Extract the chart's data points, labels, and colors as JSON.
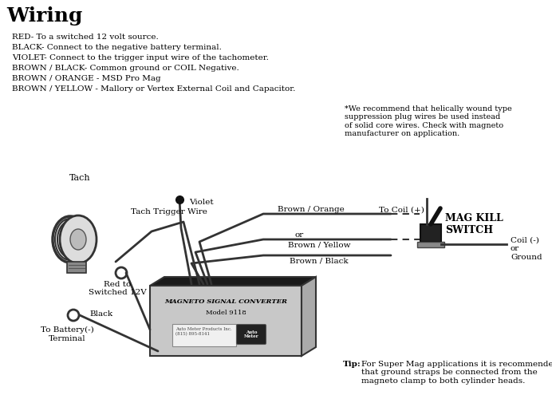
{
  "title": "Wiring",
  "bg_color": "#ffffff",
  "text_color": "#000000",
  "legend_lines": [
    "RED- To a switched 12 volt source.",
    "BLACK- Connect to the negative battery terminal.",
    "VIOLET- Connect to the trigger input wire of the tachometer.",
    "BROWN / BLACK- Common ground or COIL Negative.",
    "BROWN / ORANGE - MSD Pro Mag",
    "BROWN / YELLOW - Mallory or Vertex External Coil and Capacitor."
  ],
  "note_text": "*We recommend that helically wound type\nsuppression plug wires be used instead\nof solid core wires. Check with magneto\nmanufacturer on application.",
  "tip_text": "For Super Mag applications it is recommended\nthat ground straps be connected from the\nmagneto clamp to both cylinder heads.",
  "wire_labels": {
    "brown_orange": "Brown / Orange",
    "or": "or",
    "brown_yellow": "Brown / Yellow",
    "brown_black": "Brown / Black",
    "tach_trigger": "Tach Trigger Wire",
    "red_12v": "Red to\nSwitched 12V",
    "violet": "Violet",
    "black": "Black",
    "tach": "Tach",
    "to_coil_pos": "To Coil (+)",
    "coil_neg": "Coil (-)\nor\nGround",
    "mag_kill": "MAG KILL\nSWITCH",
    "to_battery": "To Battery(-)\nTerminal",
    "box_title": "Magneto Signal Converter",
    "box_model": "Model 9118"
  }
}
